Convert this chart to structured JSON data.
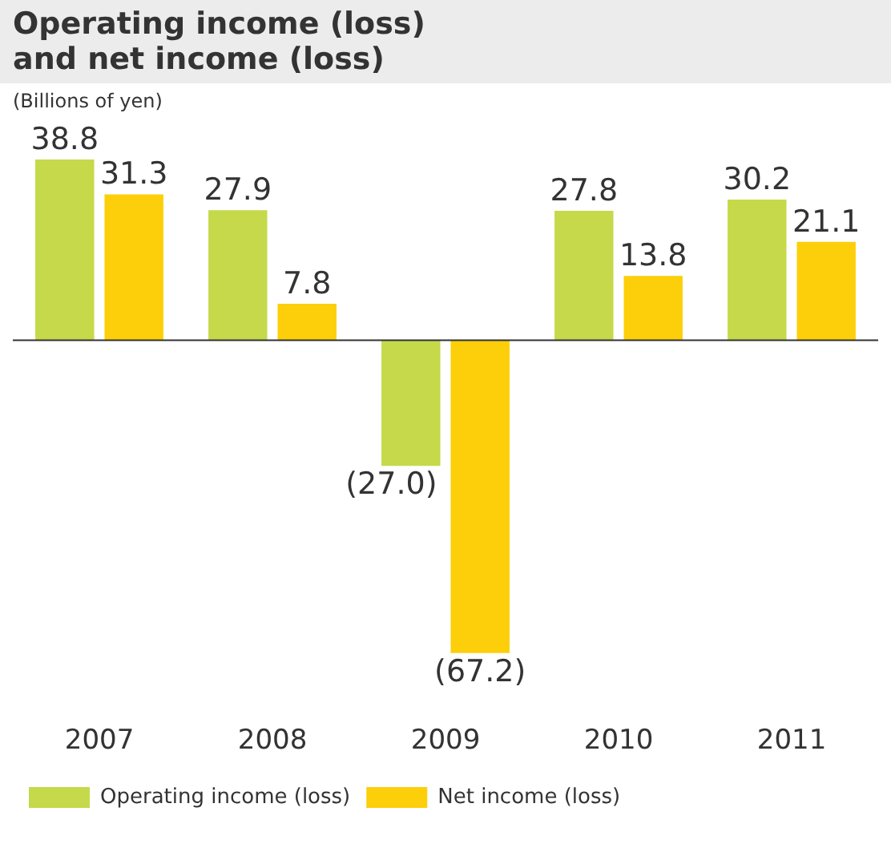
{
  "chart_data": {
    "type": "bar",
    "title": "Operating income (loss)\nand net income (loss)",
    "subtitle": "(Billions of yen)",
    "categories": [
      "2007",
      "2008",
      "2009",
      "2010",
      "2011"
    ],
    "series": [
      {
        "name": "Operating income (loss)",
        "color": "#c5d94a",
        "values": [
          38.8,
          27.9,
          -27.0,
          27.8,
          30.2
        ],
        "value_labels": [
          "38.8",
          "27.9",
          "(27.0)",
          "27.8",
          "30.2"
        ]
      },
      {
        "name": "Net income (loss)",
        "color": "#fccf0a",
        "values": [
          31.3,
          7.8,
          -67.2,
          13.8,
          21.1
        ],
        "value_labels": [
          "31.3",
          "7.8",
          "(67.2)",
          "13.8",
          "21.1"
        ]
      }
    ],
    "legend": "bottom",
    "grid": false
  }
}
